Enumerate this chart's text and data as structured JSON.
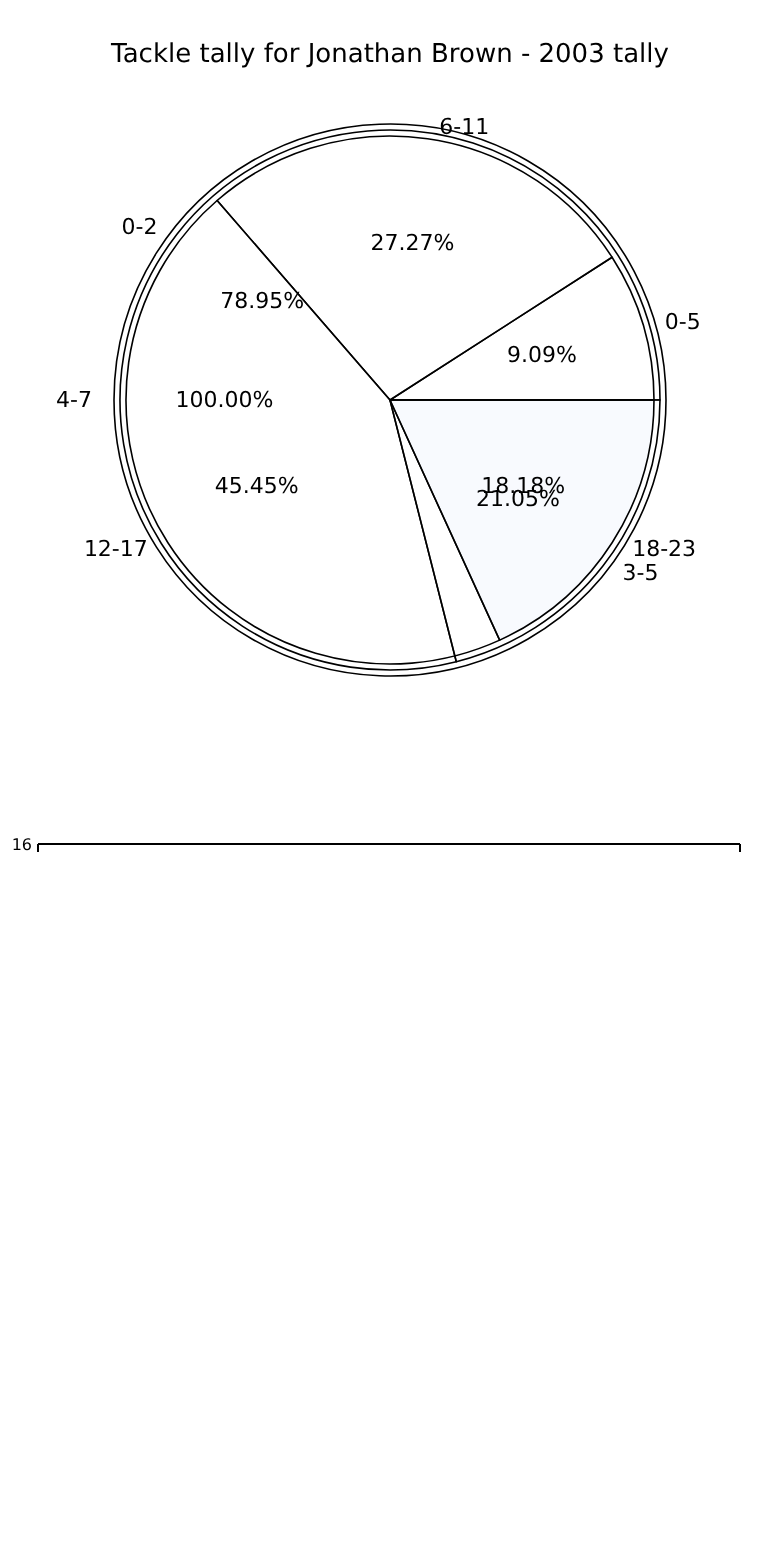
{
  "chart_data": [
    {
      "type": "pie",
      "title": "Tackle tally for Jonathan Brown - 2003 tally",
      "categories": [
        "0-5",
        "6-11",
        "12-17",
        "18-23"
      ],
      "values": [
        9.09,
        27.27,
        45.45,
        18.18
      ],
      "value_labels": [
        "9.09%",
        "27.27%",
        "45.45%",
        "18.18%"
      ],
      "colors": [
        "#ffffff",
        "#ffffff",
        "#ffffff",
        "#eaf0fc"
      ]
    },
    {
      "type": "pie",
      "categories": [
        "0-2",
        "3-5"
      ],
      "values": [
        78.95,
        21.05
      ],
      "value_labels": [
        "78.95%",
        "21.05%"
      ],
      "colors": [
        "#ffffff",
        "#ffffff"
      ]
    },
    {
      "type": "pie",
      "categories": [
        "4-7"
      ],
      "values": [
        100
      ],
      "value_labels": [
        "100.00%"
      ],
      "colors": [
        "#ffffff"
      ]
    },
    {
      "type": "other",
      "annotations": [
        "16"
      ]
    }
  ]
}
